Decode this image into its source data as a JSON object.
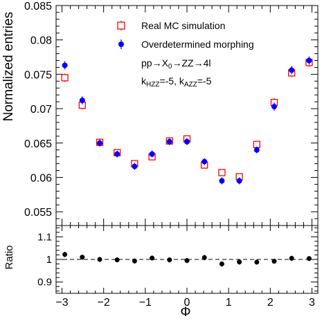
{
  "chart_data": [
    {
      "type": "scatter",
      "panel": "main",
      "ylabel": "Normalized entries",
      "xlim": [
        -3.1416,
        3.1416
      ],
      "ylim": [
        0.053,
        0.085
      ],
      "yticks": [
        0.055,
        0.06,
        0.065,
        0.07,
        0.075,
        0.08,
        0.085
      ],
      "yticklabels": [
        "0.055",
        "0.06",
        "0.065",
        "0.07",
        "0.075",
        "0.08",
        "0.085"
      ],
      "legend": {
        "placement": "top-center"
      },
      "annotation": {
        "line1": {
          "main": "pp→X",
          "sub0": "0",
          "rest": "→ZZ→4l"
        },
        "line2": {
          "k1": "k",
          "sub1": "HZZ",
          "mid": "=-5, k",
          "sub2": "AZZ",
          "end": "=-5"
        }
      },
      "x": [
        -2.932,
        -2.513,
        -2.094,
        -1.676,
        -1.257,
        -0.838,
        -0.419,
        0.0,
        0.419,
        0.838,
        1.257,
        1.676,
        2.094,
        2.513,
        2.932
      ],
      "series": [
        {
          "name": "Real MC simulation",
          "marker": "open-square",
          "color": "#ff0000",
          "values": [
            0.0745,
            0.0705,
            0.0651,
            0.0636,
            0.062,
            0.063,
            0.0653,
            0.0656,
            0.0618,
            0.0607,
            0.0601,
            0.0648,
            0.0709,
            0.0752,
            0.0767
          ],
          "errors": [
            0.0006,
            0.0006,
            0.0005,
            0.0005,
            0.0005,
            0.0005,
            0.0005,
            0.0005,
            0.0005,
            0.0005,
            0.0005,
            0.0005,
            0.0006,
            0.0006,
            0.0006
          ]
        },
        {
          "name": "Overdetermined morphing",
          "marker": "filled-circle",
          "color": "#0000ff",
          "values": [
            0.0763,
            0.0712,
            0.065,
            0.0634,
            0.0616,
            0.0634,
            0.0652,
            0.0652,
            0.0623,
            0.0595,
            0.0595,
            0.064,
            0.0703,
            0.0756,
            0.077
          ],
          "errors": [
            0.0006,
            0.0006,
            0.0005,
            0.0005,
            0.0005,
            0.0005,
            0.0005,
            0.0005,
            0.0005,
            0.0005,
            0.0005,
            0.0005,
            0.0006,
            0.0006,
            0.0006
          ]
        }
      ]
    },
    {
      "type": "scatter",
      "panel": "ratio",
      "ylabel": "Ratio",
      "xlabel": "Φ",
      "xlim": [
        -3.1416,
        3.1416
      ],
      "ylim": [
        0.85,
        1.15
      ],
      "reference_line": 1.0,
      "yticks": [
        0.9,
        1.0,
        1.1
      ],
      "yticklabels": [
        "0.9",
        "1",
        "1.1"
      ],
      "xticks": [
        -3,
        -2,
        -1,
        0,
        1,
        2,
        3
      ],
      "xticklabels": [
        "−3",
        "−2",
        "−1",
        "0",
        "1",
        "2",
        "3"
      ],
      "x": [
        -2.932,
        -2.513,
        -2.094,
        -1.676,
        -1.257,
        -0.838,
        -0.419,
        0.0,
        0.419,
        0.838,
        1.257,
        1.676,
        2.094,
        2.513,
        2.932
      ],
      "series": [
        {
          "marker": "filled-circle",
          "color": "#000000",
          "values": [
            1.022,
            1.01,
            1.0,
            0.998,
            0.993,
            1.006,
            0.998,
            0.995,
            1.008,
            0.98,
            0.989,
            0.988,
            0.992,
            1.005,
            1.004
          ],
          "errors": [
            0.012,
            0.011,
            0.011,
            0.011,
            0.011,
            0.011,
            0.011,
            0.011,
            0.012,
            0.012,
            0.012,
            0.011,
            0.011,
            0.011,
            0.011
          ]
        }
      ]
    }
  ]
}
